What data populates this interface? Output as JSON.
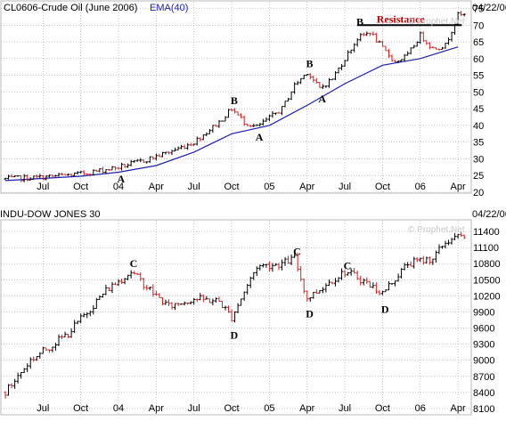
{
  "colors": {
    "up": "#000000",
    "down": "#d42020",
    "ema": "#1c1cb4",
    "resistance": "#c00000",
    "panel": "#b8b8b8",
    "grid": "#a0a0a0",
    "header": "#000000"
  },
  "chart_data": [
    {
      "type": "candlestick",
      "symbol": "CL0606-Crude Oil (June 2006)",
      "indicator": "EMA(40)",
      "date": "04/22/06",
      "watermark": "© Prophet.Net",
      "ylim": [
        20,
        77
      ],
      "y_ticks": [
        20,
        25,
        30,
        35,
        40,
        45,
        50,
        55,
        60,
        65,
        70,
        75
      ],
      "x_ticks": [
        "Jul",
        "Oct",
        "04",
        "Apr",
        "Jul",
        "Oct",
        "05",
        "Apr",
        "Jul",
        "Oct",
        "06",
        "Apr"
      ],
      "x_tick_months": [
        "2003-07",
        "2003-10",
        "2004-01",
        "2004-04",
        "2004-07",
        "2004-10",
        "2005-01",
        "2005-04",
        "2005-07",
        "2005-10",
        "2006-01",
        "2006-04"
      ],
      "start": "2003-04",
      "end": "2006-04",
      "price_path": [
        [
          "2003-04",
          24.0
        ],
        [
          "2003-07",
          24.5
        ],
        [
          "2003-10",
          25.5
        ],
        [
          "2004-01",
          27.5
        ],
        [
          "2004-03",
          29.5
        ],
        [
          "2004-05",
          32.0
        ],
        [
          "2004-07",
          35.0
        ],
        [
          "2004-09",
          41.0
        ],
        [
          "2004-10",
          45.0
        ],
        [
          "2004-11",
          41.0
        ],
        [
          "2004-12",
          39.5
        ],
        [
          "2005-02",
          45.0
        ],
        [
          "2005-03",
          52.0
        ],
        [
          "2005-04",
          56.0
        ],
        [
          "2005-05",
          51.0
        ],
        [
          "2005-06",
          54.0
        ],
        [
          "2005-07",
          60.0
        ],
        [
          "2005-08",
          66.0
        ],
        [
          "2005-09",
          68.0
        ],
        [
          "2005-10",
          63.0
        ],
        [
          "2005-11",
          59.0
        ],
        [
          "2005-12",
          61.0
        ],
        [
          "2006-01",
          67.0
        ],
        [
          "2006-02",
          63.0
        ],
        [
          "2006-03",
          64.0
        ],
        [
          "2006-04",
          73.0
        ]
      ],
      "ema_path": [
        [
          "2003-04",
          23.5
        ],
        [
          "2003-10",
          24.8
        ],
        [
          "2004-01",
          26.0
        ],
        [
          "2004-04",
          28.0
        ],
        [
          "2004-07",
          32.0
        ],
        [
          "2004-10",
          37.5
        ],
        [
          "2005-01",
          40.0
        ],
        [
          "2005-04",
          46.0
        ],
        [
          "2005-07",
          52.5
        ],
        [
          "2005-10",
          58.0
        ],
        [
          "2006-01",
          60.0
        ],
        [
          "2006-04",
          63.5
        ]
      ],
      "annotations": [
        {
          "text": "A",
          "date": "2004-01",
          "y": 24.0
        },
        {
          "text": "B",
          "date": "2004-10",
          "y": 47.5
        },
        {
          "text": "A",
          "date": "2004-12",
          "y": 36.5
        },
        {
          "text": "B",
          "date": "2005-04",
          "y": 58.5
        },
        {
          "text": "A",
          "date": "2005-05",
          "y": 48.0
        },
        {
          "text": "B",
          "date": "2005-08",
          "y": 71.0
        }
      ],
      "resistance": {
        "label": "Resistance",
        "from": "2005-08",
        "to": "2006-04",
        "y": 70.0
      }
    },
    {
      "type": "candlestick",
      "symbol": "INDU-DOW JONES 30",
      "date": "04/22/06",
      "watermark": "© Prophet.Net",
      "ylim": [
        8000,
        11600
      ],
      "y_ticks": [
        8100,
        8400,
        8700,
        9000,
        9300,
        9600,
        9900,
        10200,
        10500,
        10800,
        11100,
        11400
      ],
      "x_ticks": [
        "Jul",
        "Oct",
        "04",
        "Apr",
        "Jul",
        "Oct",
        "05",
        "Apr",
        "Jul",
        "Oct",
        "06",
        "Apr"
      ],
      "x_tick_months": [
        "2003-07",
        "2003-10",
        "2004-01",
        "2004-04",
        "2004-07",
        "2004-10",
        "2005-01",
        "2005-04",
        "2005-07",
        "2005-10",
        "2006-01",
        "2006-04"
      ],
      "start": "2003-04",
      "end": "2006-04",
      "price_path": [
        [
          "2003-04",
          8400
        ],
        [
          "2003-06",
          9000
        ],
        [
          "2003-09",
          9500
        ],
        [
          "2003-12",
          10300
        ],
        [
          "2004-02",
          10650
        ],
        [
          "2004-04",
          10200
        ],
        [
          "2004-05",
          10000
        ],
        [
          "2004-07",
          10150
        ],
        [
          "2004-09",
          10100
        ],
        [
          "2004-10",
          9800
        ],
        [
          "2004-12",
          10750
        ],
        [
          "2005-02",
          10800
        ],
        [
          "2005-03",
          10900
        ],
        [
          "2005-04",
          10150
        ],
        [
          "2005-06",
          10500
        ],
        [
          "2005-07",
          10650
        ],
        [
          "2005-08",
          10550
        ],
        [
          "2005-10",
          10250
        ],
        [
          "2005-12",
          10800
        ],
        [
          "2006-02",
          10900
        ],
        [
          "2006-03",
          11200
        ],
        [
          "2006-04",
          11300
        ]
      ],
      "annotations": [
        {
          "text": "C",
          "date": "2004-02",
          "y": 10800
        },
        {
          "text": "D",
          "date": "2004-10",
          "y": 9470
        },
        {
          "text": "C",
          "date": "2005-03",
          "y": 11030
        },
        {
          "text": "D",
          "date": "2005-04",
          "y": 9870
        },
        {
          "text": "C",
          "date": "2005-07",
          "y": 10760
        },
        {
          "text": "D",
          "date": "2005-10",
          "y": 9950
        }
      ]
    }
  ]
}
